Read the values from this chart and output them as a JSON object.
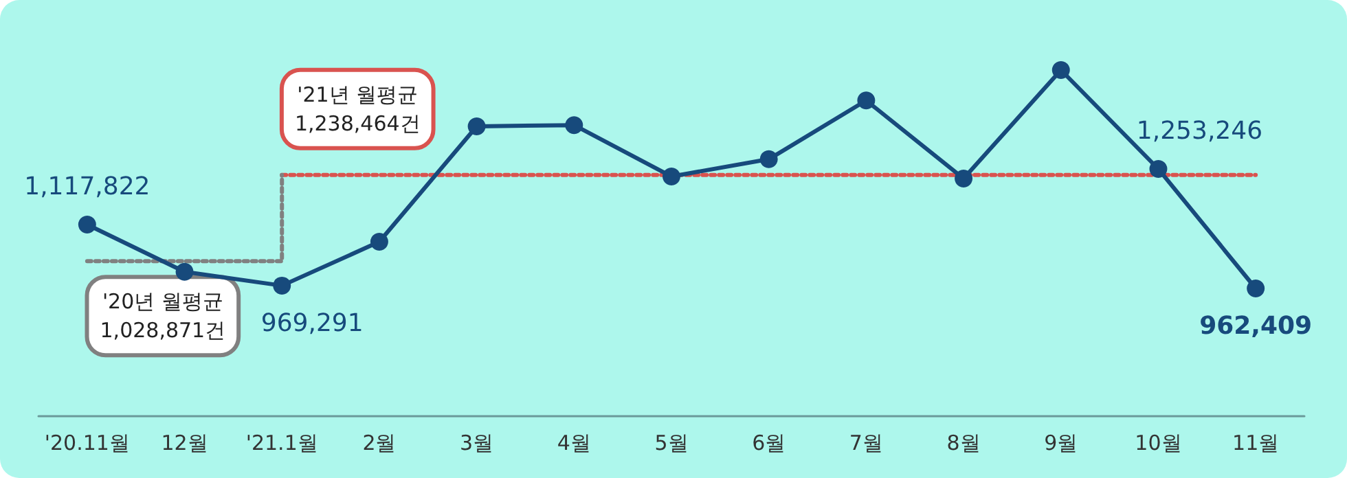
{
  "chart_data": {
    "type": "line",
    "categories": [
      "'20.11월",
      "12월",
      "'21.1월",
      "2월",
      "3월",
      "4월",
      "5월",
      "6월",
      "7월",
      "8월",
      "9월",
      "10월",
      "11월"
    ],
    "series": [
      {
        "color": "#174a7c",
        "values": [
          1117822,
          1003000,
          969291,
          1076000,
          1357000,
          1360000,
          1235000,
          1277000,
          1420000,
          1230000,
          1494000,
          1253246,
          962409
        ],
        "value_labels": [
          "1,117,822",
          null,
          "969,291",
          null,
          null,
          null,
          null,
          null,
          null,
          null,
          null,
          "1,253,246",
          "962,409"
        ],
        "marker": "circle",
        "line_style": "solid"
      },
      {
        "type": "step",
        "color": "#808080",
        "values": [
          1028871,
          1028871,
          1238464,
          null,
          null,
          null,
          null,
          null,
          null,
          null,
          null,
          null,
          null
        ],
        "marker": "none",
        "line_style": "dotted"
      },
      {
        "type": "step",
        "color": "#d9534f",
        "values": [
          null,
          null,
          1238464,
          1238464,
          1238464,
          1238464,
          1238464,
          1238464,
          1238464,
          1238464,
          1238464,
          1238464,
          1238464
        ],
        "marker": "none",
        "line_style": "dotted"
      }
    ],
    "annotations": [
      {
        "text": "'20년 월평균\n1,028,871건",
        "x": "'20.11월",
        "y": 1028871
      },
      {
        "text": "'21년 월평균\n1,238,464건",
        "x": "'21.1월",
        "y": 1238464
      }
    ],
    "grid": false
  }
}
